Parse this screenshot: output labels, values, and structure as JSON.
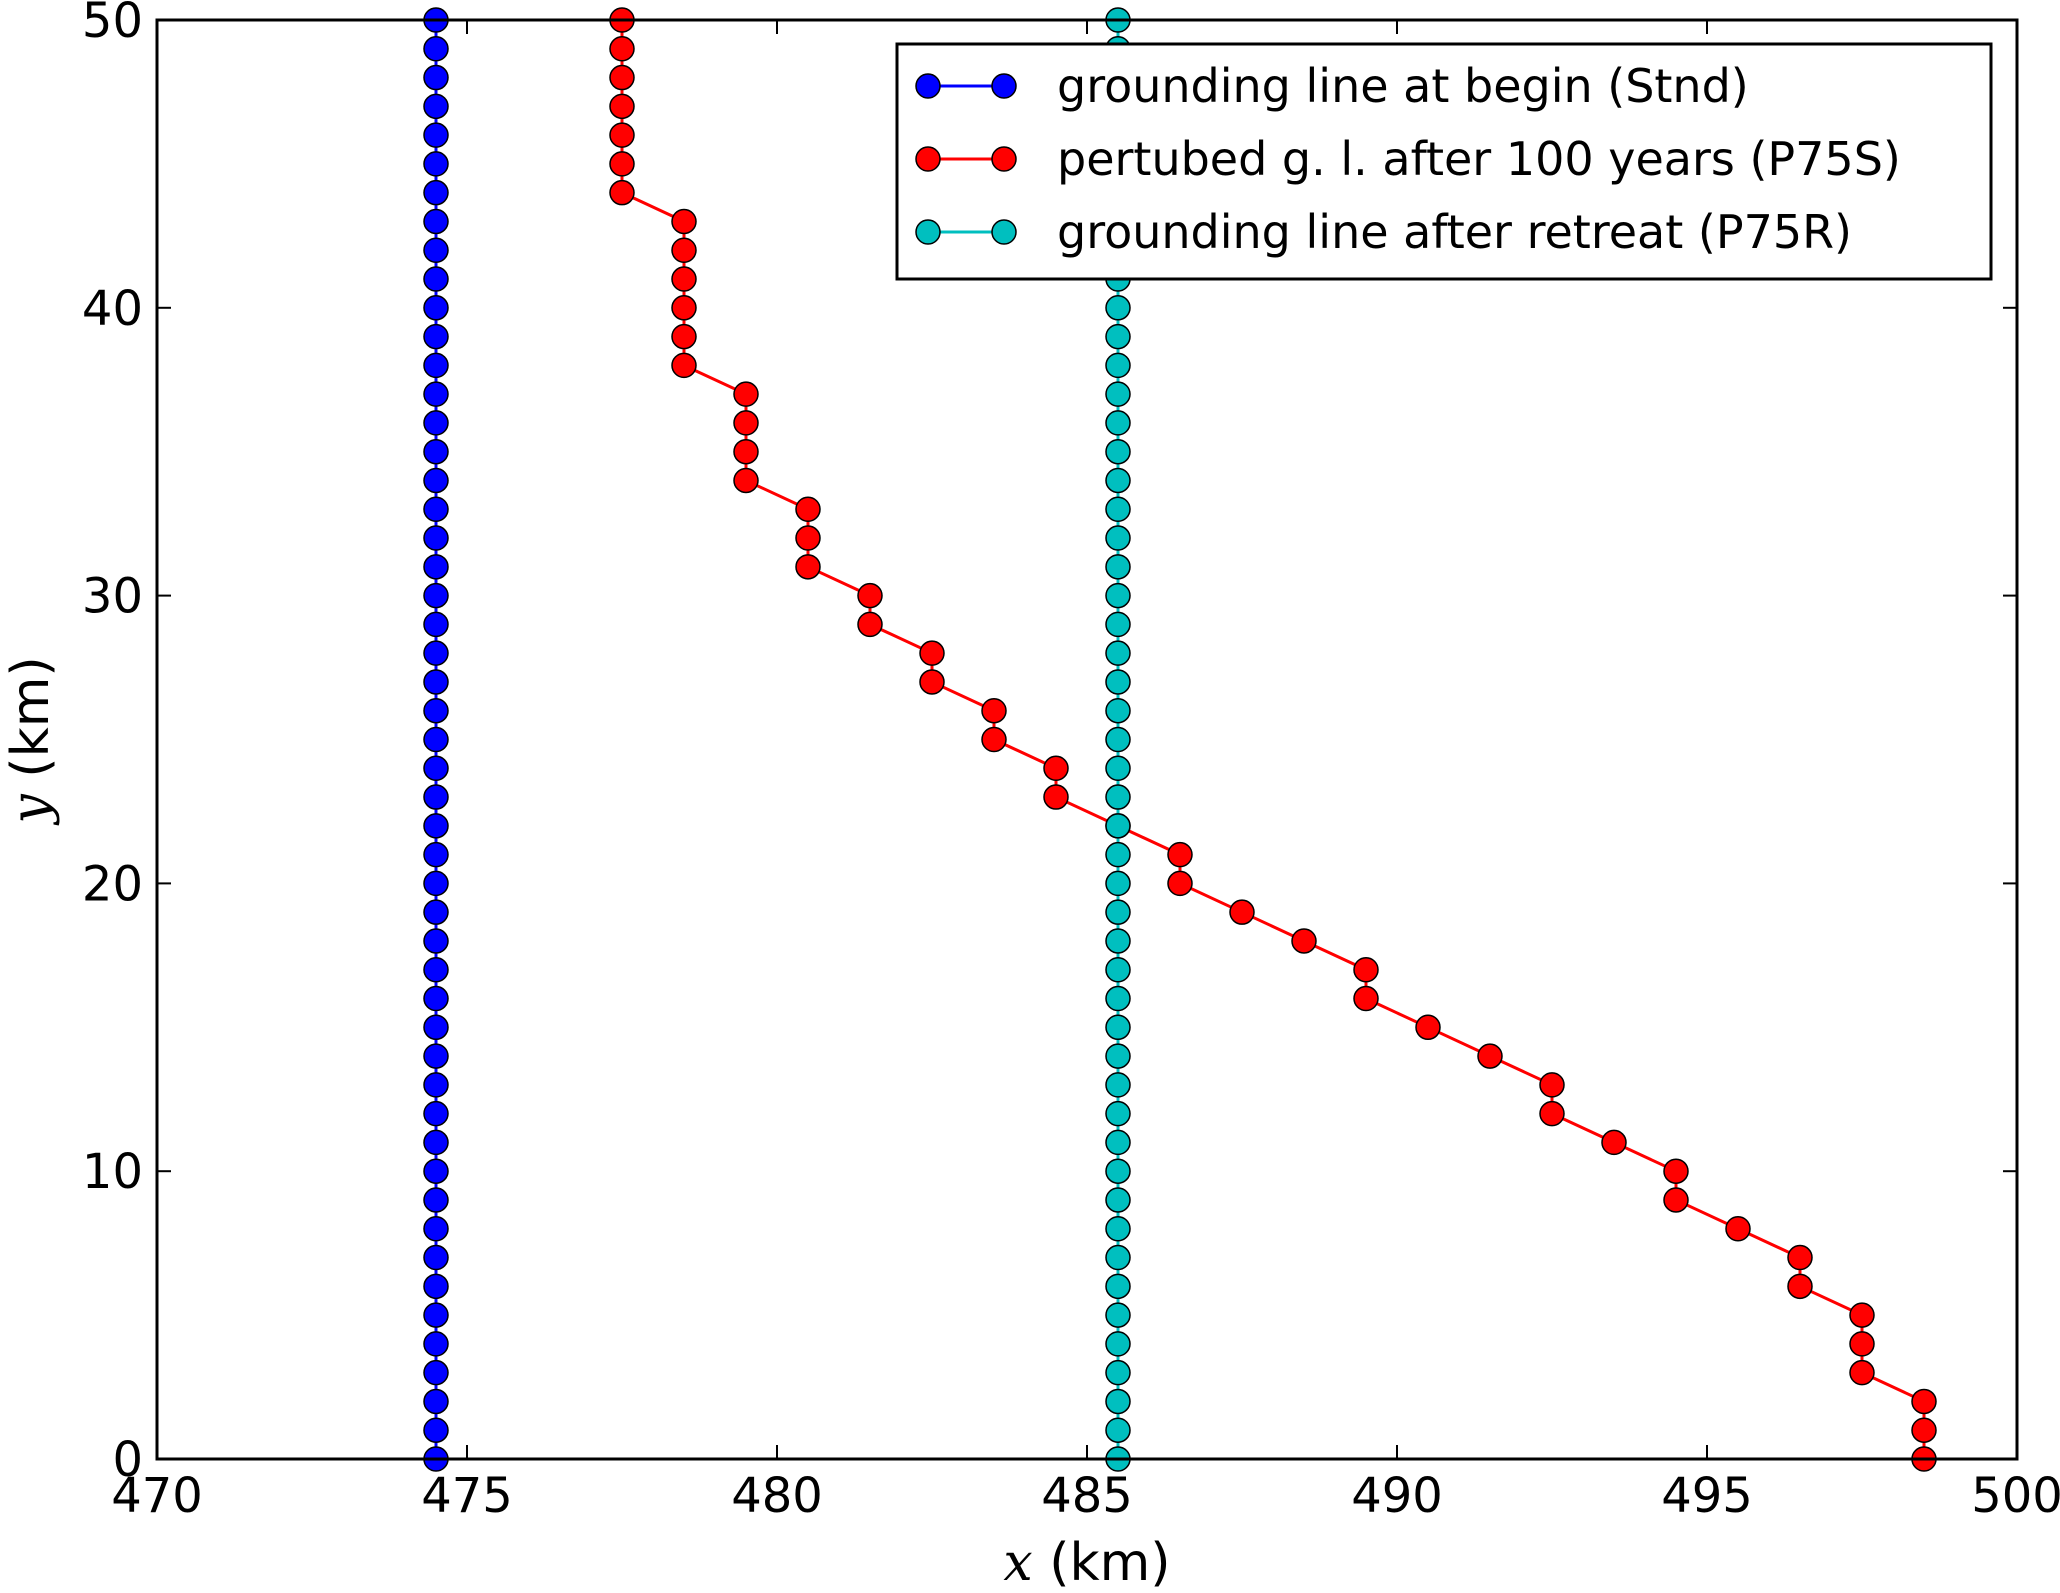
{
  "chart_data": {
    "type": "line",
    "title": "",
    "xlabel_var": "x",
    "xlabel_unit": " (km)",
    "ylabel_var": "y",
    "ylabel_unit": " (km)",
    "xlim": [
      470,
      500
    ],
    "ylim": [
      0,
      50
    ],
    "xticks": [
      470,
      475,
      480,
      485,
      490,
      495,
      500
    ],
    "yticks": [
      0,
      10,
      20,
      30,
      40,
      50
    ],
    "xtick_labels": [
      "470",
      "475",
      "480",
      "485",
      "490",
      "495",
      "500"
    ],
    "ytick_labels": [
      "0",
      "10",
      "20",
      "30",
      "40",
      "50"
    ],
    "grid": false,
    "legend_position": "top-right",
    "series": [
      {
        "name": "grounding line at begin (Stnd)",
        "color": "#0000ff",
        "marker": "circle",
        "x": [
          474.5
        ],
        "y_range": [
          0,
          50
        ],
        "y_step": 1,
        "note_constant_x": true
      },
      {
        "name": "pertubed g. l. after 100 years (P75S)",
        "color": "#ff0000",
        "marker": "circle",
        "points": [
          [
            498.5,
            0
          ],
          [
            498.5,
            1
          ],
          [
            498.5,
            2
          ],
          [
            497.5,
            3
          ],
          [
            497.5,
            4
          ],
          [
            497.5,
            5
          ],
          [
            496.5,
            6
          ],
          [
            496.5,
            7
          ],
          [
            495.5,
            8
          ],
          [
            494.5,
            9
          ],
          [
            494.5,
            10
          ],
          [
            493.5,
            11
          ],
          [
            492.5,
            12
          ],
          [
            492.5,
            13
          ],
          [
            491.5,
            14
          ],
          [
            490.5,
            15
          ],
          [
            489.5,
            16
          ],
          [
            489.5,
            17
          ],
          [
            488.5,
            18
          ],
          [
            487.5,
            19
          ],
          [
            486.5,
            20
          ],
          [
            486.5,
            21
          ],
          [
            485.5,
            22
          ],
          [
            484.5,
            23
          ],
          [
            484.5,
            24
          ],
          [
            483.5,
            25
          ],
          [
            483.5,
            26
          ],
          [
            482.5,
            27
          ],
          [
            482.5,
            28
          ],
          [
            481.5,
            29
          ],
          [
            481.5,
            30
          ],
          [
            480.5,
            31
          ],
          [
            480.5,
            32
          ],
          [
            480.5,
            33
          ],
          [
            479.5,
            34
          ],
          [
            479.5,
            35
          ],
          [
            479.5,
            36
          ],
          [
            479.5,
            37
          ],
          [
            478.5,
            38
          ],
          [
            478.5,
            39
          ],
          [
            478.5,
            40
          ],
          [
            478.5,
            41
          ],
          [
            478.5,
            42
          ],
          [
            478.5,
            43
          ],
          [
            477.5,
            44
          ],
          [
            477.5,
            45
          ],
          [
            477.5,
            46
          ],
          [
            477.5,
            47
          ],
          [
            477.5,
            48
          ],
          [
            477.5,
            49
          ],
          [
            477.5,
            50
          ]
        ]
      },
      {
        "name": "grounding line after retreat (P75R)",
        "color": "#00bfbf",
        "marker": "circle",
        "x": [
          485.5
        ],
        "y_range": [
          0,
          50
        ],
        "y_step": 1,
        "note_constant_x": true
      }
    ]
  }
}
